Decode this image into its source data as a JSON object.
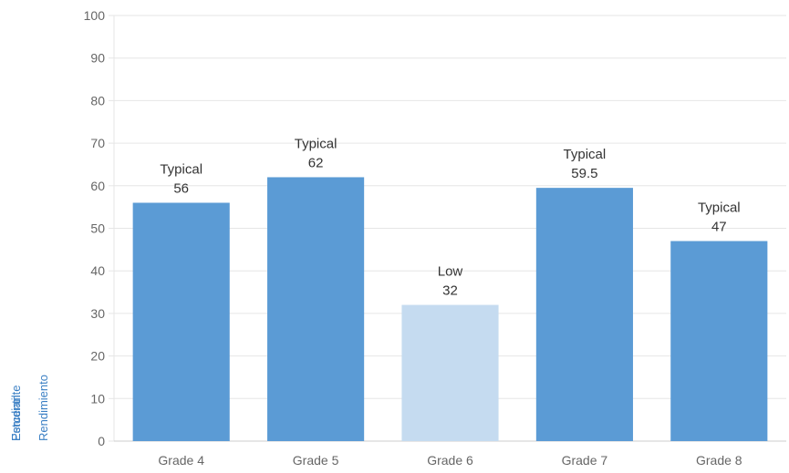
{
  "chart_data": {
    "type": "bar",
    "categories": [
      "Grade 4",
      "Grade 5",
      "Grade 6",
      "Grade 7",
      "Grade 8"
    ],
    "values": [
      56,
      62,
      32,
      59.5,
      47
    ],
    "bar_labels": [
      "Typical",
      "Typical",
      "Low",
      "Typical",
      "Typical"
    ],
    "value_labels": [
      "56",
      "62",
      "32",
      "59.5",
      "47"
    ],
    "bar_colors": [
      "#5b9bd5",
      "#5b9bd5",
      "#c5dbf0",
      "#5b9bd5",
      "#5b9bd5"
    ],
    "ylabel_lines": [
      "Estudiante",
      "Percentil",
      "Rendimiento"
    ],
    "ylim": [
      0,
      100
    ],
    "yticks": [
      0,
      10,
      20,
      30,
      40,
      50,
      60,
      70,
      80,
      90,
      100
    ],
    "grid": true,
    "legend": "none",
    "colors": {
      "primary_bar": "#5b9bd5",
      "low_bar": "#c5dbf0",
      "gridline": "#e6e6e6",
      "axis_text": "#666666",
      "label_text": "#333333",
      "ylabel_text": "#3a7fc4"
    }
  }
}
